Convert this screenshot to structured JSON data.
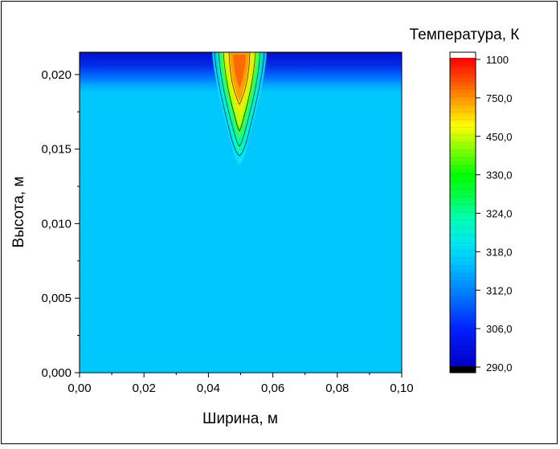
{
  "chart_data": {
    "type": "heatmap",
    "title": "",
    "xlabel": "Ширина, м",
    "ylabel": "Высота, м",
    "xlim": [
      0.0,
      0.1
    ],
    "ylim": [
      0.0,
      0.0215
    ],
    "x_ticks": [
      "0,00",
      "0,02",
      "0,04",
      "0,06",
      "0,08",
      "0,10"
    ],
    "y_ticks": [
      "0,000",
      "0,005",
      "0,010",
      "0,015",
      "0,020"
    ],
    "colorbar": {
      "title": "Температура, К",
      "tick_labels": [
        "1100",
        "750,0",
        "450,0",
        "330,0",
        "324,0",
        "318,0",
        "312,0",
        "306,0",
        "290,0"
      ],
      "levels": [
        290,
        306,
        312,
        318,
        324,
        330,
        450,
        750,
        1100
      ],
      "colors": [
        "#000000",
        "#0000cc",
        "#00c8ff",
        "#00ffbe",
        "#00ff00",
        "#8cff00",
        "#ffff00",
        "#ff8000",
        "#ff0000",
        "#ffffff"
      ]
    },
    "field_description": {
      "background_temperature": 312,
      "hot_spot": {
        "x_center": 0.05,
        "y_top": 0.0215,
        "y_bottom": 0.0145,
        "max_temperature": 1100
      },
      "top_band": {
        "y_from": 0.019,
        "y_to": 0.0215,
        "temperature": 300
      }
    },
    "grid": false,
    "legend": "right colorbar"
  }
}
